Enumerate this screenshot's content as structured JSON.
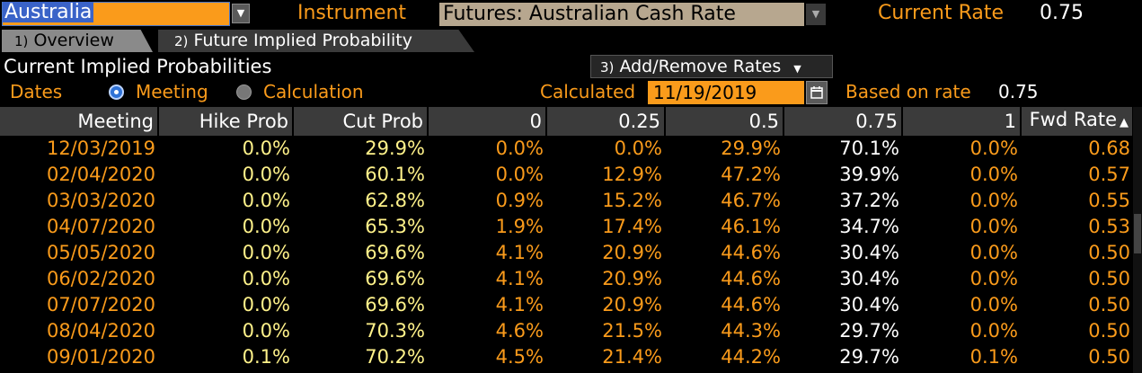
{
  "top_bar": {
    "country": "Australia",
    "instrument_label": "Instrument",
    "instrument_value": "Futures: Australian Cash Rate",
    "current_rate_label": "Current Rate",
    "current_rate_value": "0.75"
  },
  "tabs": [
    {
      "num": "1)",
      "label": "Overview"
    },
    {
      "num": "2)",
      "label": "Future Implied Probability"
    }
  ],
  "section": {
    "title": "Current Implied Probabilities",
    "add_remove_num": "3)",
    "add_remove_label": "Add/Remove Rates",
    "dates_label": "Dates",
    "opt_meeting": "Meeting",
    "opt_calculation": "Calculation",
    "calculated_label": "Calculated",
    "calculated_date": "11/19/2019",
    "based_label": "Based on rate",
    "based_value": "0.75"
  },
  "table": {
    "headers": [
      "Meeting",
      "Hike Prob",
      "Cut Prob",
      "0",
      "0.25",
      "0.5",
      "0.75",
      "1",
      "Fwd Rate"
    ],
    "rows": [
      [
        "12/03/2019",
        "0.0%",
        "29.9%",
        "0.0%",
        "0.0%",
        "29.9%",
        "70.1%",
        "0.0%",
        "0.68"
      ],
      [
        "02/04/2020",
        "0.0%",
        "60.1%",
        "0.0%",
        "12.9%",
        "47.2%",
        "39.9%",
        "0.0%",
        "0.57"
      ],
      [
        "03/03/2020",
        "0.0%",
        "62.8%",
        "0.9%",
        "15.2%",
        "46.7%",
        "37.2%",
        "0.0%",
        "0.55"
      ],
      [
        "04/07/2020",
        "0.0%",
        "65.3%",
        "1.9%",
        "17.4%",
        "46.1%",
        "34.7%",
        "0.0%",
        "0.53"
      ],
      [
        "05/05/2020",
        "0.0%",
        "69.6%",
        "4.1%",
        "20.9%",
        "44.6%",
        "30.4%",
        "0.0%",
        "0.50"
      ],
      [
        "06/02/2020",
        "0.0%",
        "69.6%",
        "4.1%",
        "20.9%",
        "44.6%",
        "30.4%",
        "0.0%",
        "0.50"
      ],
      [
        "07/07/2020",
        "0.0%",
        "69.6%",
        "4.1%",
        "20.9%",
        "44.6%",
        "30.4%",
        "0.0%",
        "0.50"
      ],
      [
        "08/04/2020",
        "0.0%",
        "70.3%",
        "4.6%",
        "21.5%",
        "44.3%",
        "29.7%",
        "0.0%",
        "0.50"
      ],
      [
        "09/01/2020",
        "0.1%",
        "70.2%",
        "4.5%",
        "21.4%",
        "44.2%",
        "29.7%",
        "0.1%",
        "0.50"
      ]
    ]
  },
  "colors": {
    "accent_orange": "#fa9b1b",
    "cut_prob_yellow": "#fff28a",
    "header_gray": "#3b3b3b",
    "selected_blue": "#3a63c8"
  }
}
